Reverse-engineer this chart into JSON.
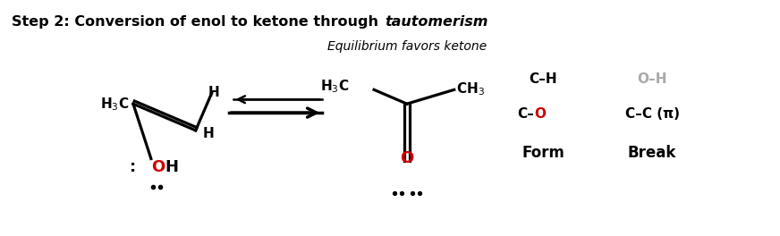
{
  "title_plain": "Step 2: Conversion of enol to ketone through ",
  "title_italic": "tautomerism",
  "bg_color": "#ffffff",
  "text_color": "#000000",
  "red_color": "#cc0000",
  "gray_color": "#aaaaaa",
  "subtitle": "Equilibrium favors ketone",
  "form_header": "Form",
  "break_header": "Break",
  "form_item1_black": "C–",
  "form_item1_red": "O",
  "form_item2": "C–H",
  "break_item1": "C–C (π)",
  "break_item2": "O–H"
}
